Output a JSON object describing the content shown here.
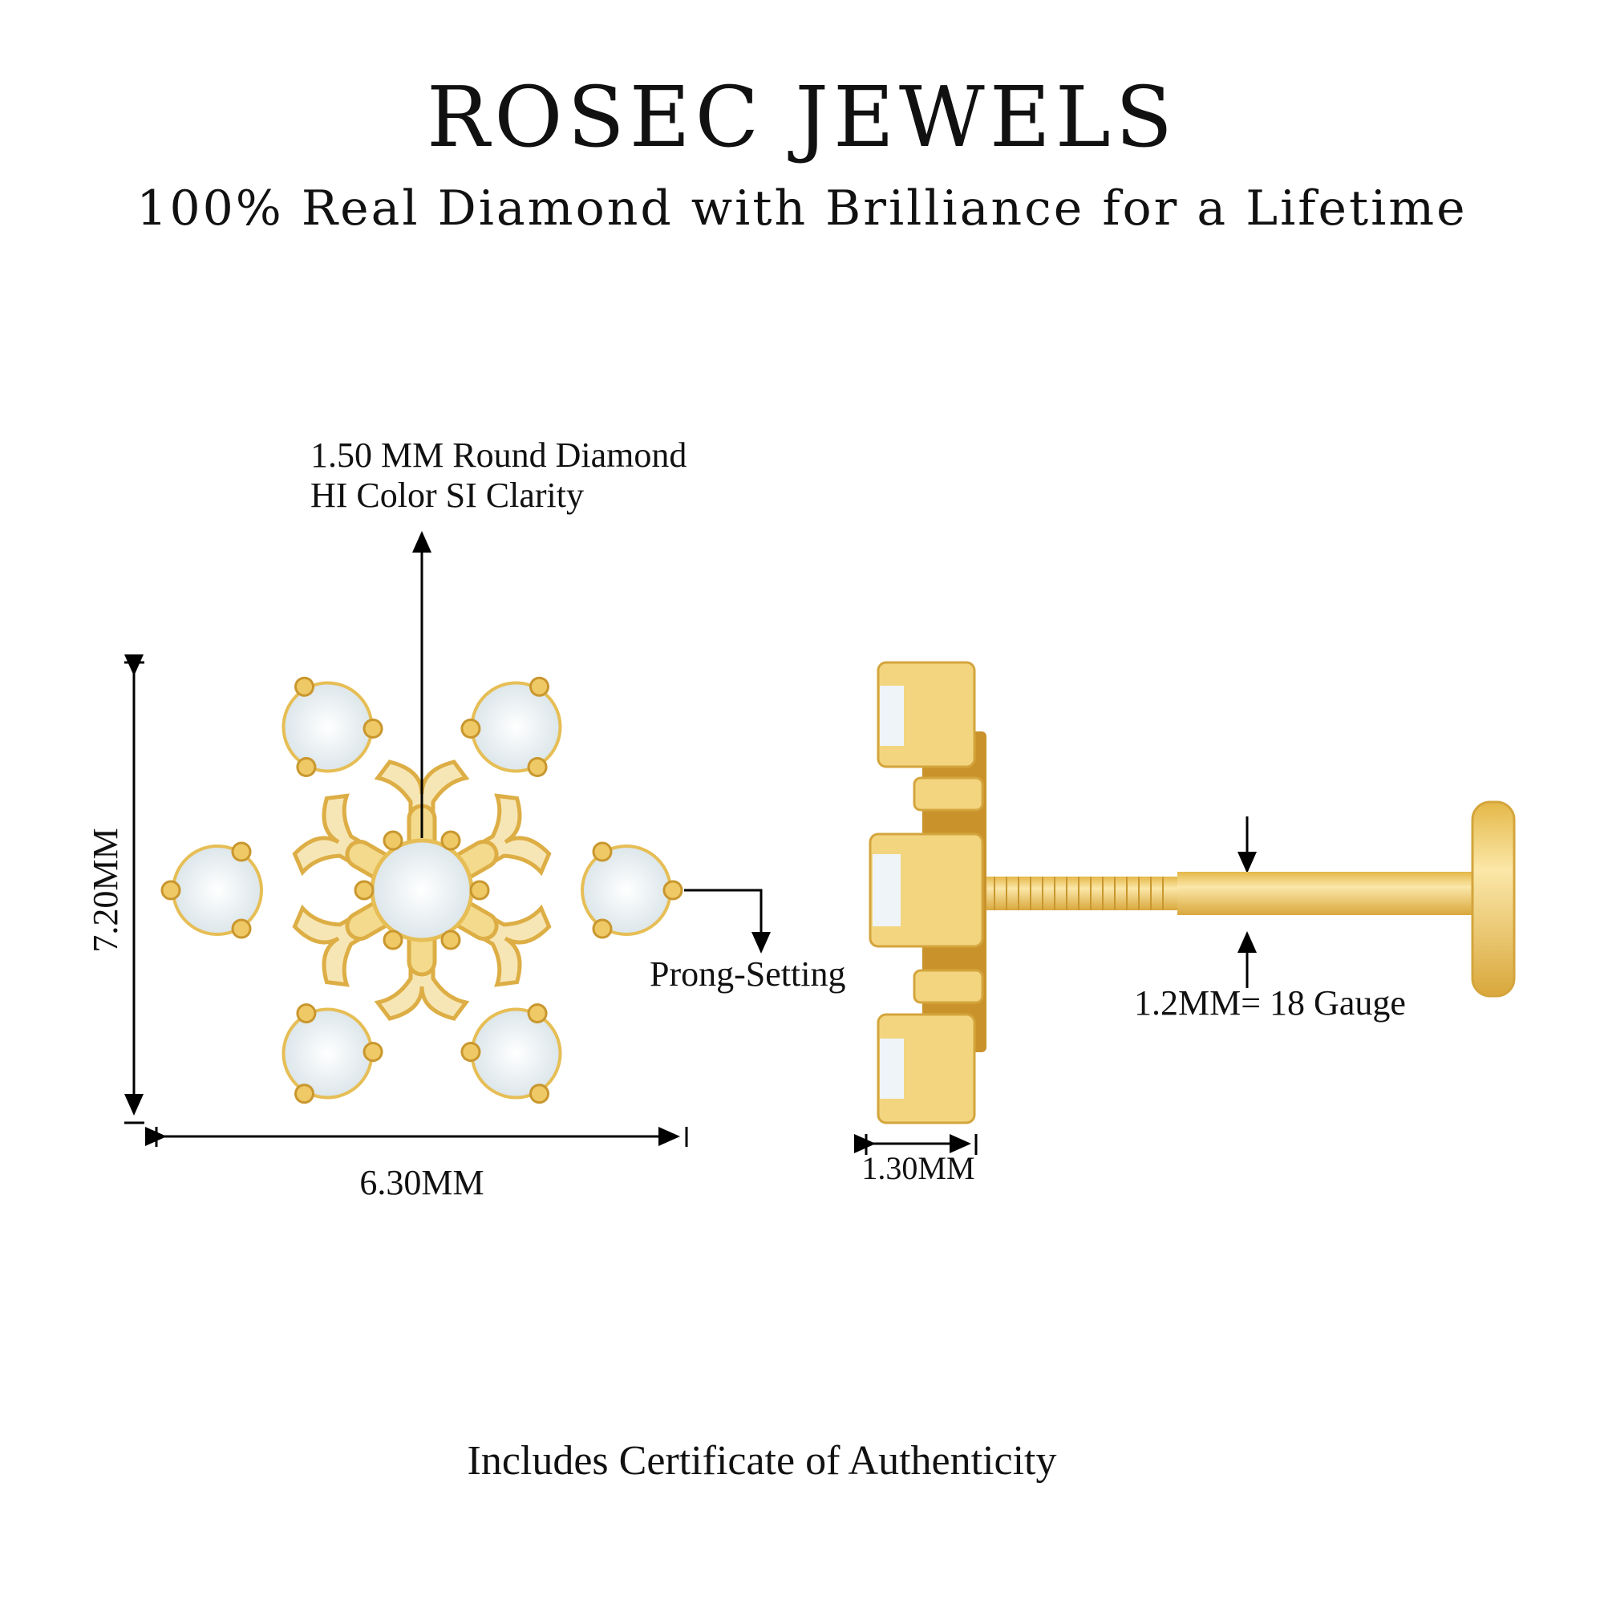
{
  "brand": {
    "title": "ROSEC JEWELS",
    "tagline": "100% Real Diamond with Brilliance for a Lifetime"
  },
  "annotations": {
    "diamond_line1": "1.50 MM Round Diamond",
    "diamond_line2": "HI Color SI Clarity",
    "prong": "Prong-Setting",
    "height": "7.20MM",
    "width": "6.30MM",
    "side_width": "1.30MM",
    "gauge": "1.2MM= 18 Gauge"
  },
  "footer": "Includes Certificate of Authenticity",
  "colors": {
    "gold": "#EFC965",
    "gold_light": "#F7E6B5",
    "gold_dark": "#C9972E",
    "diamond": "#EEF4F7"
  }
}
